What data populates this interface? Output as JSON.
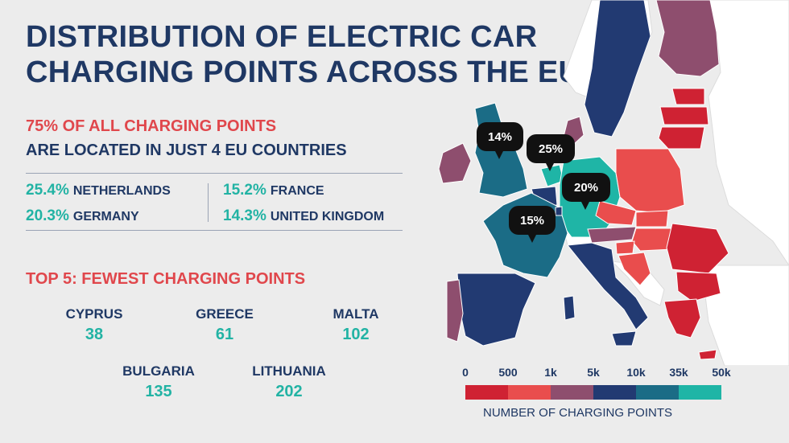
{
  "title": [
    "DISTRIBUTION OF ELECTRIC CAR",
    "CHARGING POINTS ACROSS THE EU"
  ],
  "highlight": {
    "line1": "75% OF ALL CHARGING POINTS",
    "line2": "ARE LOCATED IN JUST 4 EU COUNTRIES"
  },
  "colors": {
    "navy": "#1f3864",
    "red": "#e0474c",
    "teal": "#22b3a4"
  },
  "chart_data": [
    {
      "type": "table",
      "title": "75% OF ALL CHARGING POINTS ARE LOCATED IN JUST 4 EU COUNTRIES",
      "unit": "%",
      "rows": [
        {
          "pct": "25.4%",
          "country": "NETHERLANDS",
          "value": 25.4
        },
        {
          "pct": "20.3%",
          "country": "GERMANY",
          "value": 20.3
        },
        {
          "pct": "15.2%",
          "country": "FRANCE",
          "value": 15.2
        },
        {
          "pct": "14.3%",
          "country": "UNITED KINGDOM",
          "value": 14.3
        }
      ]
    },
    {
      "type": "table",
      "title": "TOP 5: FEWEST CHARGING POINTS",
      "rows": [
        {
          "country": "CYPRUS",
          "value": "38"
        },
        {
          "country": "GREECE",
          "value": "61"
        },
        {
          "country": "MALTA",
          "value": "102"
        },
        {
          "country": "BULGARIA",
          "value": "135"
        },
        {
          "country": "LITHUANIA",
          "value": "202"
        }
      ]
    },
    {
      "type": "heatmap",
      "legend_title": "NUMBER OF CHARGING POINTS",
      "scale_ticks": [
        "0",
        "500",
        "1k",
        "5k",
        "10k",
        "35k",
        "50k"
      ],
      "scale_colors": [
        "#cf2233",
        "#e94d4d",
        "#8e4e6e",
        "#223a72",
        "#1b6c86",
        "#1fb5a6"
      ],
      "map_labels": [
        {
          "country": "UNITED KINGDOM",
          "label": "14%"
        },
        {
          "country": "NETHERLANDS",
          "label": "25%"
        },
        {
          "country": "GERMANY",
          "label": "20%"
        },
        {
          "country": "FRANCE",
          "label": "15%"
        }
      ]
    }
  ]
}
